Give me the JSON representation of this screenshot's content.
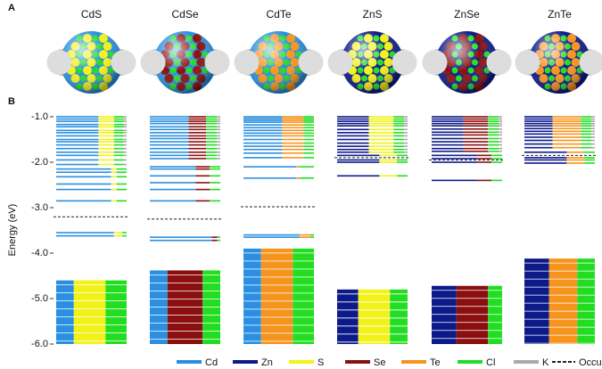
{
  "chart_data": {
    "type": "energy-levels",
    "panel_labels": [
      "A",
      "B"
    ],
    "categories": [
      "CdS",
      "CdSe",
      "CdTe",
      "ZnS",
      "ZnSe",
      "ZnTe"
    ],
    "y_label": "Energy (eV)",
    "ylim": [
      -6.0,
      -1.0
    ],
    "yticks": [
      {
        "value": -1,
        "label": "-1.0"
      },
      {
        "value": -2,
        "label": "-2.0"
      },
      {
        "value": -3,
        "label": "-3.0"
      },
      {
        "value": -4,
        "label": "-4.0"
      },
      {
        "value": -5,
        "label": "-5.0"
      },
      {
        "value": -6,
        "label": "-6.0"
      }
    ],
    "series": [
      {
        "name": "Cd",
        "color": "#2a8fe0"
      },
      {
        "name": "Zn",
        "color": "#0c1a8a"
      },
      {
        "name": "S",
        "color": "#f2f21a"
      },
      {
        "name": "Se",
        "color": "#8b0f0f"
      },
      {
        "name": "Te",
        "color": "#f7941d"
      },
      {
        "name": "Cl",
        "color": "#22dd22"
      },
      {
        "name": "K",
        "color": "#aaaaaa"
      }
    ],
    "occupied_label": "Occupied levels",
    "panels": [
      {
        "occupied": -3.2,
        "groups": [
          {
            "energies": [
              -1.0,
              -1.05,
              -1.1,
              -1.17,
              -1.22,
              -1.3,
              -1.35,
              -1.42,
              -1.5,
              -1.55,
              -1.62,
              -1.7,
              -1.78,
              -1.85,
              -1.95,
              -2.05
            ],
            "shares": [
              60,
              0,
              22,
              0,
              0,
              14,
              4
            ]
          },
          {
            "energies": [
              -2.15,
              -2.22,
              -2.32,
              -2.48,
              -2.6,
              -2.85
            ],
            "shares": [
              78,
              0,
              8,
              0,
              0,
              14,
              0
            ]
          },
          {
            "energies": [
              -3.55,
              -3.62
            ],
            "shares": [
              82,
              0,
              12,
              0,
              0,
              6,
              0
            ]
          }
        ],
        "band": {
          "range": [
            -4.6,
            -6.0
          ],
          "shares": [
            25,
            0,
            45,
            0,
            0,
            30,
            0
          ]
        }
      },
      {
        "occupied": -3.25,
        "groups": [
          {
            "energies": [
              -1.0,
              -1.05,
              -1.1,
              -1.15,
              -1.22,
              -1.28,
              -1.35,
              -1.42,
              -1.48,
              -1.55,
              -1.62,
              -1.7,
              -1.78,
              -1.85,
              -1.92
            ],
            "shares": [
              55,
              0,
              0,
              25,
              0,
              15,
              5
            ]
          },
          {
            "energies": [
              -2.1,
              -2.15,
              -2.3,
              -2.45,
              -2.6,
              -2.85
            ],
            "shares": [
              65,
              0,
              0,
              20,
              0,
              15,
              0
            ]
          },
          {
            "energies": [
              -3.65,
              -3.72
            ],
            "shares": [
              88,
              0,
              0,
              8,
              0,
              4,
              0
            ]
          }
        ],
        "band": {
          "range": [
            -4.38,
            -6.0
          ],
          "shares": [
            25,
            0,
            0,
            50,
            0,
            25,
            0
          ]
        }
      },
      {
        "occupied": -2.98,
        "groups": [
          {
            "energies": [
              -1.0,
              -1.04,
              -1.08,
              -1.12,
              -1.18,
              -1.24,
              -1.3,
              -1.36,
              -1.42,
              -1.5,
              -1.58,
              -1.65,
              -1.72,
              -1.8,
              -1.9
            ],
            "shares": [
              55,
              0,
              0,
              0,
              30,
              15,
              0
            ]
          },
          {
            "energies": [
              -2.1,
              -2.35
            ],
            "shares": [
              75,
              0,
              0,
              0,
              5,
              20,
              0
            ]
          },
          {
            "energies": [
              -3.6,
              -3.65
            ],
            "shares": [
              80,
              0,
              0,
              0,
              15,
              5,
              0
            ]
          }
        ],
        "band": {
          "range": [
            -3.9,
            -6.0
          ],
          "shares": [
            25,
            0,
            0,
            0,
            45,
            30,
            0
          ]
        }
      },
      {
        "occupied": -1.9,
        "groups": [
          {
            "energies": [
              -1.0,
              -1.05,
              -1.1,
              -1.15,
              -1.2,
              -1.28,
              -1.35,
              -1.42,
              -1.5,
              -1.58,
              -1.65,
              -1.72,
              -1.78
            ],
            "shares": [
              0,
              45,
              35,
              0,
              0,
              15,
              5
            ]
          },
          {
            "energies": [
              -1.85,
              -1.95,
              -2.0,
              -2.3
            ],
            "shares": [
              0,
              60,
              25,
              0,
              0,
              15,
              0
            ]
          }
        ],
        "band": {
          "range": [
            -4.8,
            -6.0
          ],
          "shares": [
            0,
            30,
            45,
            0,
            0,
            25,
            0
          ]
        }
      },
      {
        "occupied": -1.95,
        "groups": [
          {
            "energies": [
              -1.0,
              -1.05,
              -1.1,
              -1.15,
              -1.2,
              -1.27,
              -1.34,
              -1.4,
              -1.48,
              -1.55,
              -1.62,
              -1.7,
              -1.76
            ],
            "shares": [
              0,
              45,
              0,
              35,
              0,
              15,
              5
            ]
          },
          {
            "energies": [
              -1.85,
              -1.92,
              -2.0,
              -2.4
            ],
            "shares": [
              0,
              65,
              0,
              20,
              0,
              15,
              0
            ]
          }
        ],
        "band": {
          "range": [
            -4.72,
            -6.0
          ],
          "shares": [
            0,
            35,
            0,
            45,
            0,
            20,
            0
          ]
        }
      },
      {
        "occupied": -1.85,
        "groups": [
          {
            "energies": [
              -1.0,
              -1.05,
              -1.1,
              -1.15,
              -1.2,
              -1.26,
              -1.32,
              -1.38,
              -1.45,
              -1.52,
              -1.6,
              -1.68
            ],
            "shares": [
              0,
              40,
              0,
              0,
              40,
              15,
              5
            ]
          },
          {
            "energies": [
              -1.78,
              -1.9,
              -1.95,
              -2.02
            ],
            "shares": [
              0,
              60,
              0,
              0,
              25,
              15,
              0
            ]
          }
        ],
        "band": {
          "range": [
            -4.12,
            -6.0
          ],
          "shares": [
            0,
            35,
            0,
            0,
            40,
            25,
            0
          ]
        }
      }
    ]
  }
}
